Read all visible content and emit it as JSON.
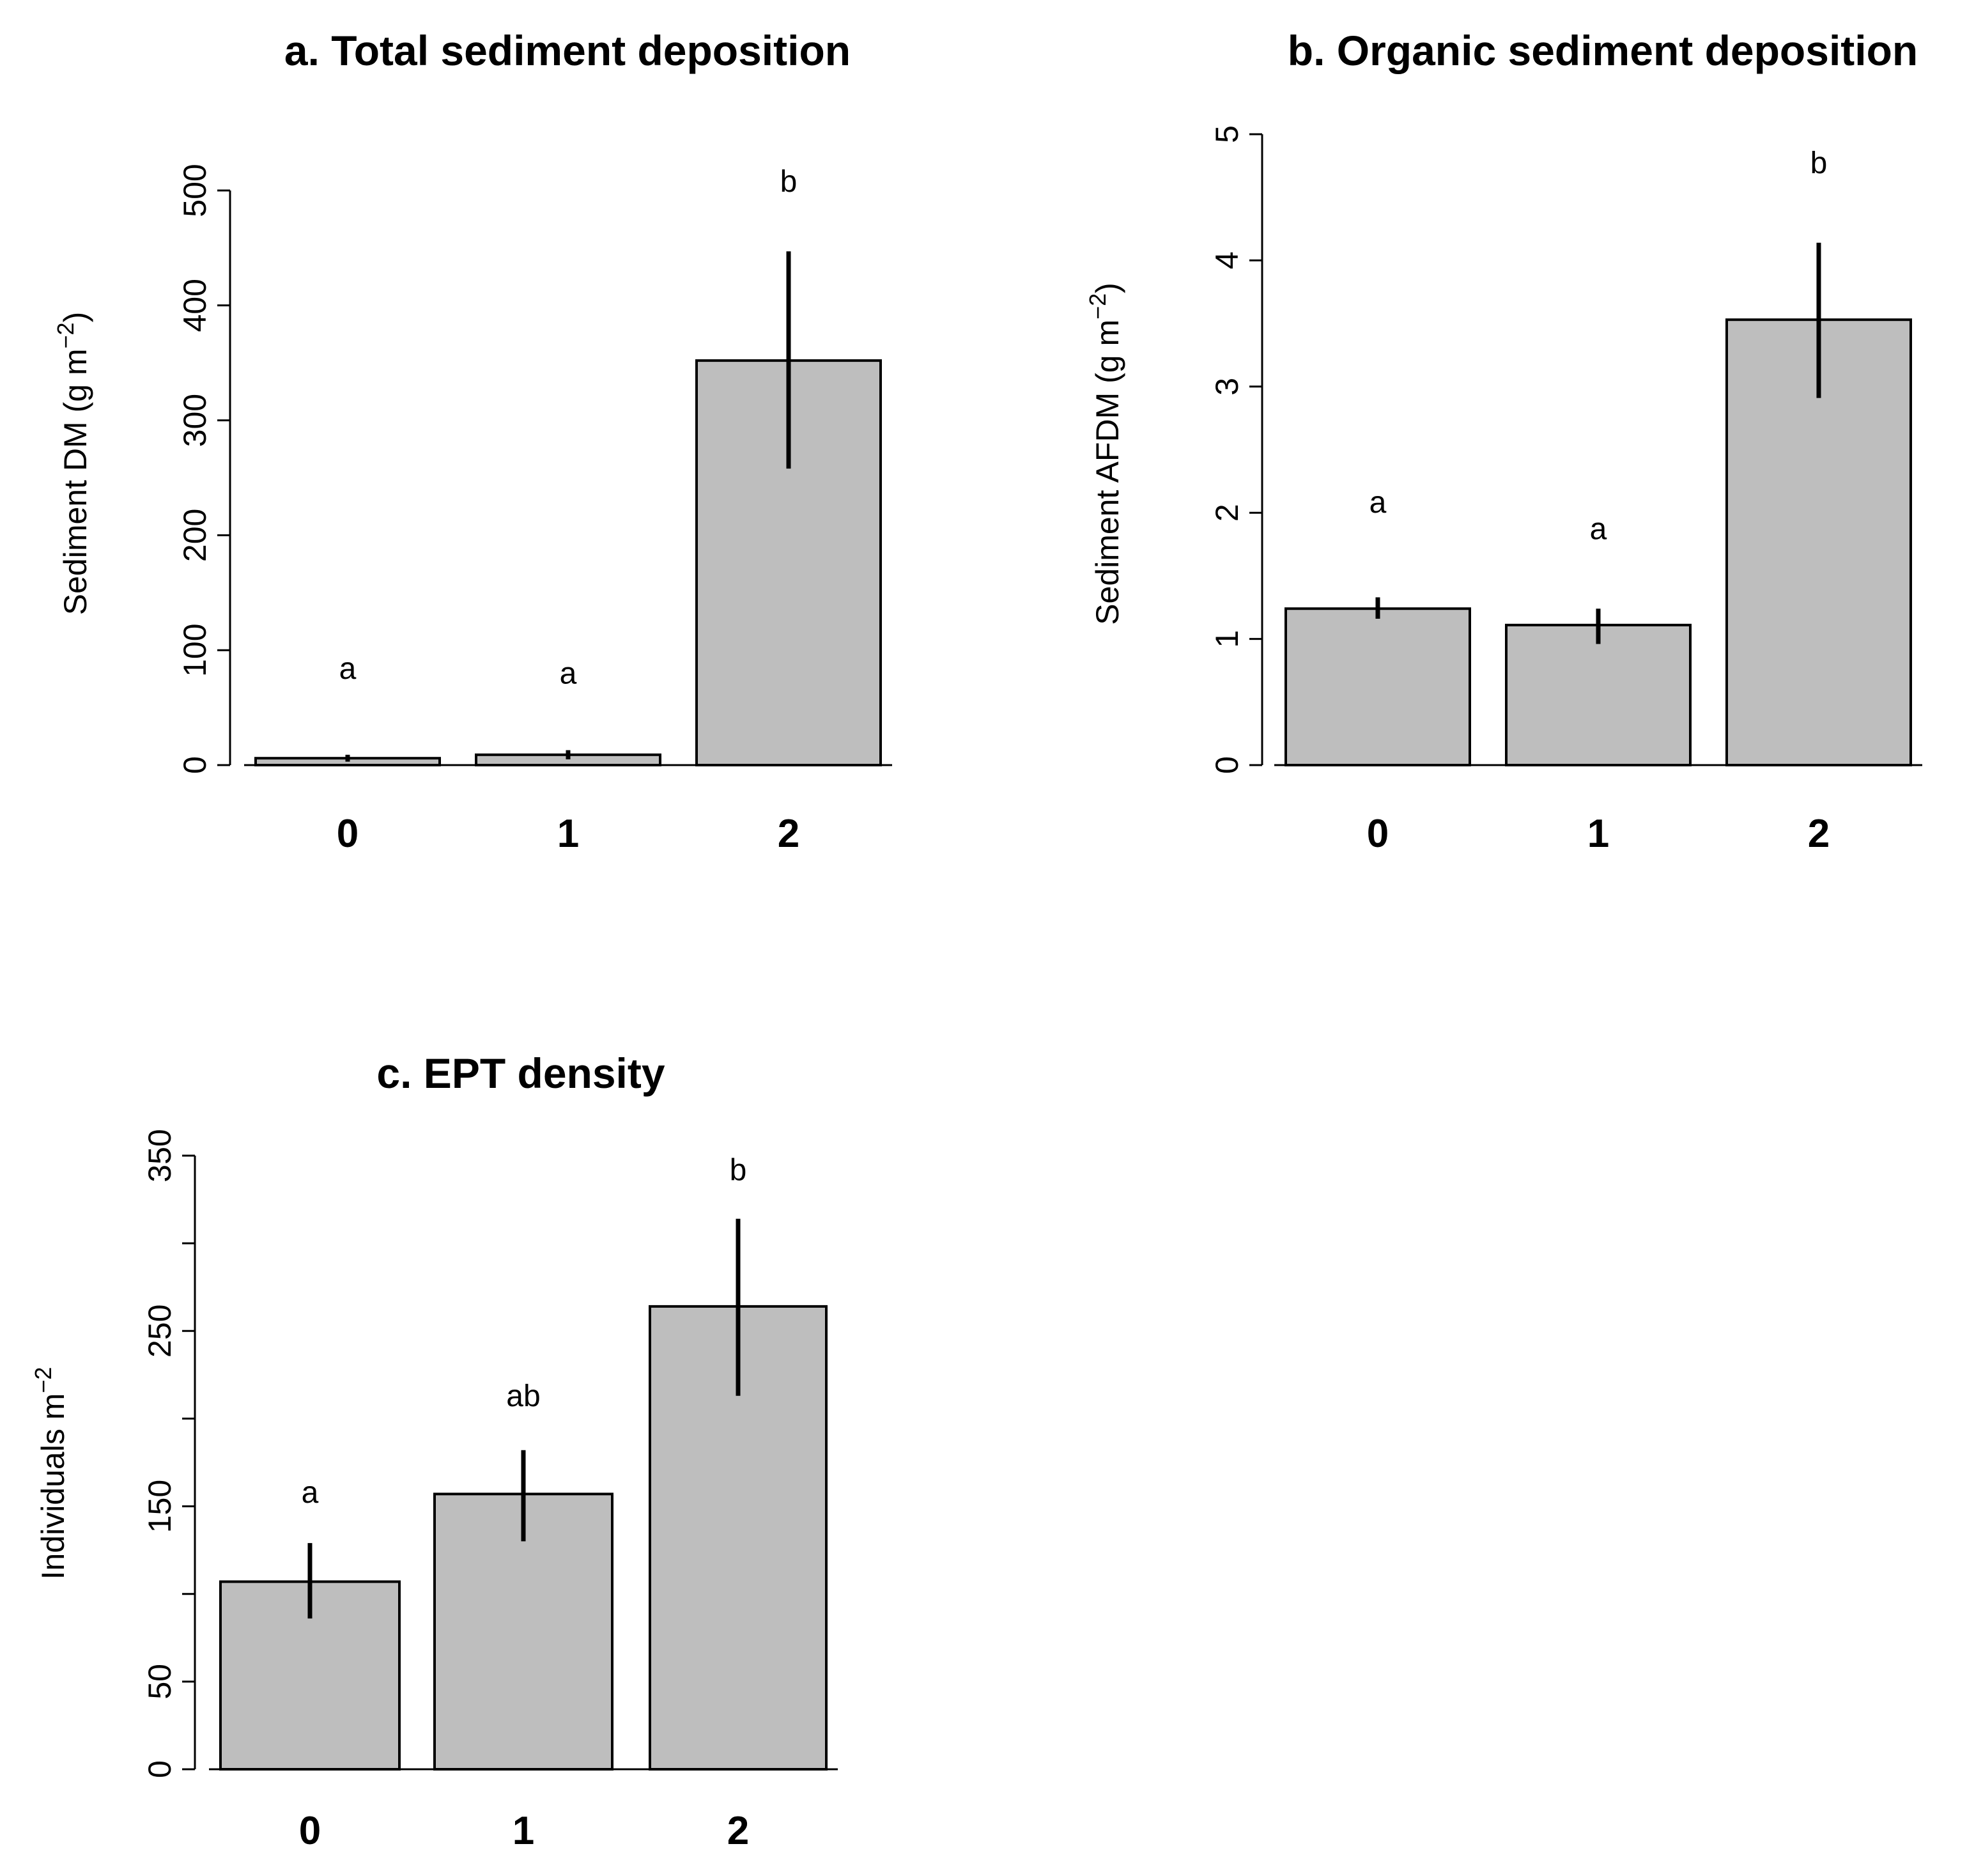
{
  "figure": {
    "panels": 3,
    "layout": "2x2 grid, bottom-right empty",
    "colors": {
      "bar": "#bebebe",
      "bar_border": "#000000",
      "error_bar": "#000000",
      "axis": "#000000",
      "background": "#ffffff"
    }
  },
  "chart_data": [
    {
      "id": "a",
      "type": "bar",
      "title": "a. Total sediment deposition",
      "ylabel": {
        "prefix": "Sediment  DM (g m",
        "sup": "−2",
        "suffix": ")"
      },
      "xlabel": "",
      "categories": [
        "0",
        "1",
        "2"
      ],
      "values": [
        6,
        9,
        352
      ],
      "error_low": [
        3,
        5,
        258
      ],
      "error_high": [
        9,
        13,
        447
      ],
      "letters": [
        "a",
        "a",
        "b"
      ],
      "letter_y": [
        75,
        71,
        499
      ],
      "yticks": [
        "0",
        "100",
        "200",
        "300",
        "400",
        "500"
      ],
      "ylim": [
        0,
        500
      ]
    },
    {
      "id": "b",
      "type": "bar",
      "title": "b. Organic sediment deposition",
      "ylabel": {
        "prefix": "Sediment  AFDM (g m",
        "sup": "−2",
        "suffix": ")"
      },
      "xlabel": "",
      "categories": [
        "0",
        "1",
        "2"
      ],
      "values": [
        1.24,
        1.11,
        3.53
      ],
      "error_low": [
        1.16,
        0.96,
        2.91
      ],
      "error_high": [
        1.33,
        1.24,
        4.14
      ],
      "letters": [
        "a",
        "a",
        "b"
      ],
      "letter_y": [
        2.0,
        1.79,
        4.69
      ],
      "yticks": [
        "0",
        "1",
        "2",
        "3",
        "4",
        "5"
      ],
      "ylim": [
        0,
        5
      ]
    },
    {
      "id": "c",
      "type": "bar",
      "title": "c. EPT density",
      "ylabel": {
        "prefix": "Individuals m",
        "sup": "−2",
        "suffix": ""
      },
      "xlabel": "",
      "categories": [
        "0",
        "1",
        "2"
      ],
      "values": [
        107,
        157,
        264
      ],
      "error_low": [
        86,
        130,
        213
      ],
      "error_high": [
        129,
        182,
        314
      ],
      "letters": [
        "a",
        "ab",
        "b"
      ],
      "letter_y": [
        152,
        207,
        336
      ],
      "yticks": [
        "0",
        "50",
        "150",
        "250",
        "350"
      ],
      "ytick_values": [
        0,
        50,
        100,
        150,
        200,
        250,
        300,
        350
      ],
      "ylim": [
        0,
        350
      ]
    }
  ]
}
